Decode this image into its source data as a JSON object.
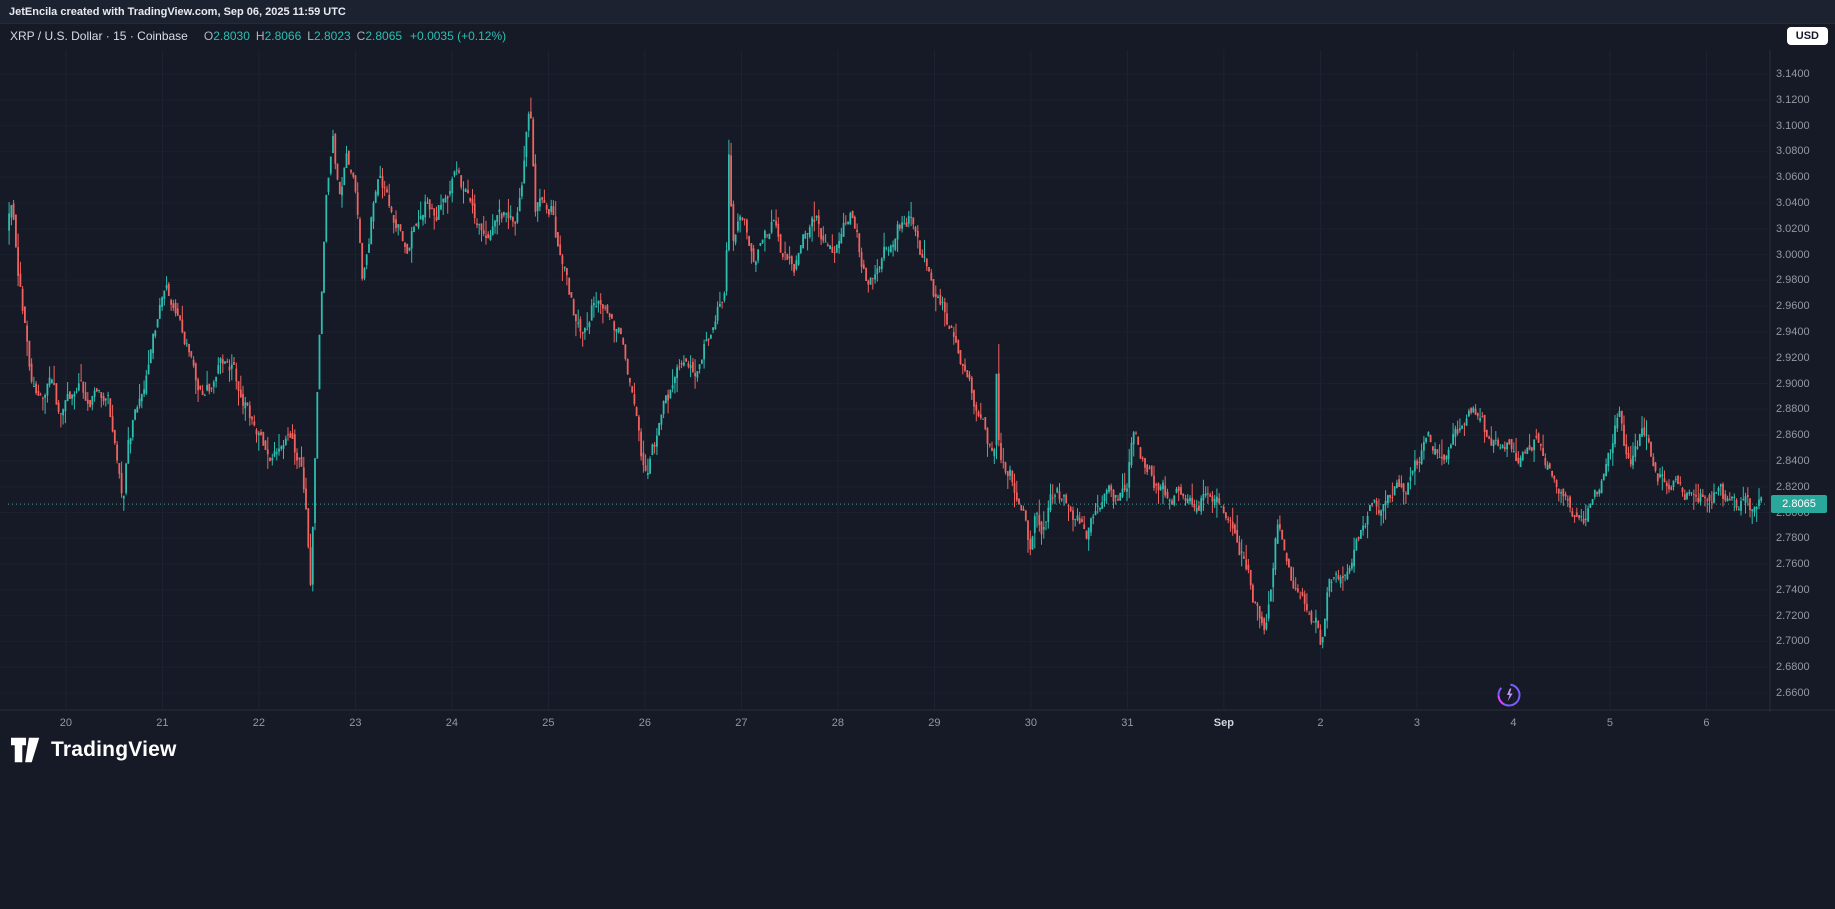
{
  "attribution": "JetEncila created with TradingView.com, Sep 06, 2025 11:59 UTC",
  "symbol": {
    "title": "XRP / U.S. Dollar · 15 · Coinbase",
    "ohlc": [
      {
        "label": "O",
        "value": "2.8030"
      },
      {
        "label": "H",
        "value": "2.8066"
      },
      {
        "label": "L",
        "value": "2.8023"
      },
      {
        "label": "C",
        "value": "2.8065"
      }
    ],
    "change": "+0.0035 (+0.12%)"
  },
  "currency_button": "USD",
  "price_badge": "2.8065",
  "logo_text": "TradingView",
  "icons": {
    "logo_mark": "tradingview-mark-icon",
    "watermark": "sparkle-circle-icon"
  },
  "colors": {
    "background": "#151a26",
    "up": "#2fbdb0",
    "down": "#f0625f",
    "badge_bg": "#2aa79b",
    "grid_v": "#1e2331",
    "grid_h": "#1a202c",
    "axis_border": "#2a2e39",
    "price_line": "#4db6ac"
  },
  "chart_data": {
    "type": "candlestick",
    "symbol": "XRP/USD",
    "interval": "15",
    "exchange": "Coinbase",
    "ohlc_current": {
      "o": 2.803,
      "h": 2.8066,
      "l": 2.8023,
      "c": 2.8065
    },
    "last_price": 2.8065,
    "t_start": 19.4,
    "t_end": 37.58,
    "y_axis_min": 2.66,
    "y_axis_max": 3.14,
    "y_ticks": [
      "3.1400",
      "3.1200",
      "3.1000",
      "3.0800",
      "3.0600",
      "3.0400",
      "3.0200",
      "3.0000",
      "2.9800",
      "2.9600",
      "2.9400",
      "2.9200",
      "2.9000",
      "2.8800",
      "2.8600",
      "2.8400",
      "2.8200",
      "2.8000",
      "2.7800",
      "2.7600",
      "2.7400",
      "2.7200",
      "2.7000",
      "2.6800",
      "2.6600"
    ],
    "x_labels": [
      {
        "label": "20",
        "t": 20
      },
      {
        "label": "21",
        "t": 21
      },
      {
        "label": "22",
        "t": 22
      },
      {
        "label": "23",
        "t": 23
      },
      {
        "label": "24",
        "t": 24
      },
      {
        "label": "25",
        "t": 25
      },
      {
        "label": "26",
        "t": 26
      },
      {
        "label": "27",
        "t": 27
      },
      {
        "label": "28",
        "t": 28
      },
      {
        "label": "29",
        "t": 29
      },
      {
        "label": "30",
        "t": 30
      },
      {
        "label": "31",
        "t": 31
      },
      {
        "label": "Sep",
        "t": 32,
        "major": true
      },
      {
        "label": "2",
        "t": 33
      },
      {
        "label": "3",
        "t": 34
      },
      {
        "label": "4",
        "t": 35
      },
      {
        "label": "5",
        "t": 36
      },
      {
        "label": "6",
        "t": 37
      }
    ],
    "price_path": [
      [
        19.4,
        3.02
      ],
      [
        19.45,
        3.04
      ],
      [
        19.55,
        2.965
      ],
      [
        19.65,
        2.905
      ],
      [
        19.75,
        2.885
      ],
      [
        19.85,
        2.905
      ],
      [
        19.95,
        2.875
      ],
      [
        20.05,
        2.89
      ],
      [
        20.15,
        2.9
      ],
      [
        20.25,
        2.885
      ],
      [
        20.35,
        2.895
      ],
      [
        20.45,
        2.885
      ],
      [
        20.55,
        2.84
      ],
      [
        20.6,
        2.8
      ],
      [
        20.65,
        2.855
      ],
      [
        20.75,
        2.88
      ],
      [
        20.85,
        2.905
      ],
      [
        20.95,
        2.95
      ],
      [
        21.05,
        2.975
      ],
      [
        21.15,
        2.955
      ],
      [
        21.25,
        2.935
      ],
      [
        21.35,
        2.905
      ],
      [
        21.45,
        2.89
      ],
      [
        21.55,
        2.905
      ],
      [
        21.65,
        2.92
      ],
      [
        21.75,
        2.91
      ],
      [
        21.85,
        2.885
      ],
      [
        21.95,
        2.87
      ],
      [
        22.05,
        2.855
      ],
      [
        22.15,
        2.84
      ],
      [
        22.25,
        2.855
      ],
      [
        22.35,
        2.86
      ],
      [
        22.45,
        2.835
      ],
      [
        22.5,
        2.8
      ],
      [
        22.55,
        2.745
      ],
      [
        22.62,
        2.9
      ],
      [
        22.7,
        3.04
      ],
      [
        22.78,
        3.09
      ],
      [
        22.85,
        3.045
      ],
      [
        22.92,
        3.075
      ],
      [
        23.0,
        3.06
      ],
      [
        23.08,
        2.985
      ],
      [
        23.15,
        3.01
      ],
      [
        23.25,
        3.065
      ],
      [
        23.35,
        3.04
      ],
      [
        23.45,
        3.02
      ],
      [
        23.55,
        3.005
      ],
      [
        23.65,
        3.025
      ],
      [
        23.75,
        3.04
      ],
      [
        23.85,
        3.03
      ],
      [
        23.95,
        3.045
      ],
      [
        24.05,
        3.065
      ],
      [
        24.15,
        3.05
      ],
      [
        24.25,
        3.03
      ],
      [
        24.35,
        3.01
      ],
      [
        24.45,
        3.025
      ],
      [
        24.55,
        3.035
      ],
      [
        24.65,
        3.02
      ],
      [
        24.75,
        3.06
      ],
      [
        24.82,
        3.125
      ],
      [
        24.88,
        3.03
      ],
      [
        24.95,
        3.045
      ],
      [
        25.05,
        3.03
      ],
      [
        25.15,
        2.995
      ],
      [
        25.25,
        2.965
      ],
      [
        25.35,
        2.935
      ],
      [
        25.45,
        2.955
      ],
      [
        25.55,
        2.965
      ],
      [
        25.65,
        2.95
      ],
      [
        25.75,
        2.94
      ],
      [
        25.85,
        2.905
      ],
      [
        25.95,
        2.86
      ],
      [
        26.03,
        2.825
      ],
      [
        26.12,
        2.86
      ],
      [
        26.22,
        2.885
      ],
      [
        26.32,
        2.905
      ],
      [
        26.42,
        2.92
      ],
      [
        26.52,
        2.905
      ],
      [
        26.62,
        2.925
      ],
      [
        26.72,
        2.945
      ],
      [
        26.82,
        2.965
      ],
      [
        26.85,
        2.975
      ],
      [
        26.88,
        3.082
      ],
      [
        26.92,
        3.005
      ],
      [
        27.0,
        3.035
      ],
      [
        27.08,
        3.01
      ],
      [
        27.15,
        2.995
      ],
      [
        27.25,
        3.015
      ],
      [
        27.35,
        3.025
      ],
      [
        27.45,
        3.0
      ],
      [
        27.55,
        2.99
      ],
      [
        27.65,
        3.01
      ],
      [
        27.75,
        3.03
      ],
      [
        27.85,
        3.015
      ],
      [
        27.95,
        3.0
      ],
      [
        28.05,
        3.015
      ],
      [
        28.15,
        3.035
      ],
      [
        28.25,
        2.995
      ],
      [
        28.35,
        2.975
      ],
      [
        28.45,
        2.995
      ],
      [
        28.55,
        3.005
      ],
      [
        28.65,
        3.02
      ],
      [
        28.75,
        3.03
      ],
      [
        28.85,
        3.01
      ],
      [
        28.95,
        2.985
      ],
      [
        29.05,
        2.965
      ],
      [
        29.15,
        2.95
      ],
      [
        29.25,
        2.925
      ],
      [
        29.35,
        2.905
      ],
      [
        29.45,
        2.88
      ],
      [
        29.55,
        2.86
      ],
      [
        29.62,
        2.845
      ],
      [
        29.64,
        2.855
      ],
      [
        29.66,
        2.918
      ],
      [
        29.68,
        2.85
      ],
      [
        29.7,
        2.845
      ],
      [
        29.8,
        2.825
      ],
      [
        29.9,
        2.805
      ],
      [
        29.97,
        2.79
      ],
      [
        30.0,
        2.768
      ],
      [
        30.05,
        2.8
      ],
      [
        30.12,
        2.785
      ],
      [
        30.2,
        2.805
      ],
      [
        30.28,
        2.818
      ],
      [
        30.36,
        2.808
      ],
      [
        30.44,
        2.8
      ],
      [
        30.52,
        2.792
      ],
      [
        30.6,
        2.785
      ],
      [
        30.68,
        2.8
      ],
      [
        30.76,
        2.812
      ],
      [
        30.84,
        2.818
      ],
      [
        30.92,
        2.81
      ],
      [
        31.0,
        2.82
      ],
      [
        31.07,
        2.862
      ],
      [
        31.15,
        2.845
      ],
      [
        31.23,
        2.83
      ],
      [
        31.31,
        2.822
      ],
      [
        31.39,
        2.815
      ],
      [
        31.47,
        2.81
      ],
      [
        31.55,
        2.818
      ],
      [
        31.63,
        2.81
      ],
      [
        31.71,
        2.802
      ],
      [
        31.79,
        2.81
      ],
      [
        31.87,
        2.815
      ],
      [
        31.95,
        2.805
      ],
      [
        32.03,
        2.8
      ],
      [
        32.1,
        2.788
      ],
      [
        32.18,
        2.772
      ],
      [
        32.26,
        2.752
      ],
      [
        32.34,
        2.73
      ],
      [
        32.42,
        2.708
      ],
      [
        32.5,
        2.74
      ],
      [
        32.58,
        2.798
      ],
      [
        32.63,
        2.772
      ],
      [
        32.7,
        2.75
      ],
      [
        32.78,
        2.738
      ],
      [
        32.86,
        2.728
      ],
      [
        32.94,
        2.715
      ],
      [
        33.0,
        2.708
      ],
      [
        33.02,
        2.695
      ],
      [
        33.08,
        2.735
      ],
      [
        33.16,
        2.755
      ],
      [
        33.24,
        2.745
      ],
      [
        33.32,
        2.76
      ],
      [
        33.4,
        2.778
      ],
      [
        33.48,
        2.795
      ],
      [
        33.56,
        2.808
      ],
      [
        33.64,
        2.8
      ],
      [
        33.72,
        2.812
      ],
      [
        33.8,
        2.822
      ],
      [
        33.88,
        2.815
      ],
      [
        33.96,
        2.83
      ],
      [
        34.04,
        2.845
      ],
      [
        34.12,
        2.858
      ],
      [
        34.2,
        2.848
      ],
      [
        34.28,
        2.838
      ],
      [
        34.36,
        2.855
      ],
      [
        34.44,
        2.865
      ],
      [
        34.52,
        2.872
      ],
      [
        34.6,
        2.882
      ],
      [
        34.68,
        2.87
      ],
      [
        34.76,
        2.858
      ],
      [
        34.84,
        2.85
      ],
      [
        34.92,
        2.855
      ],
      [
        35.0,
        2.848
      ],
      [
        35.08,
        2.84
      ],
      [
        35.16,
        2.85
      ],
      [
        35.24,
        2.858
      ],
      [
        35.32,
        2.845
      ],
      [
        35.4,
        2.828
      ],
      [
        35.48,
        2.818
      ],
      [
        35.56,
        2.81
      ],
      [
        35.64,
        2.798
      ],
      [
        35.72,
        2.792
      ],
      [
        35.8,
        2.805
      ],
      [
        35.88,
        2.815
      ],
      [
        35.96,
        2.832
      ],
      [
        36.04,
        2.855
      ],
      [
        36.1,
        2.882
      ],
      [
        36.16,
        2.852
      ],
      [
        36.22,
        2.838
      ],
      [
        36.28,
        2.846
      ],
      [
        36.34,
        2.868
      ],
      [
        36.4,
        2.855
      ],
      [
        36.46,
        2.838
      ],
      [
        36.52,
        2.828
      ],
      [
        36.6,
        2.82
      ],
      [
        36.68,
        2.824
      ],
      [
        36.76,
        2.818
      ],
      [
        36.84,
        2.812
      ],
      [
        36.92,
        2.815
      ],
      [
        37.0,
        2.808
      ],
      [
        37.08,
        2.812
      ],
      [
        37.16,
        2.818
      ],
      [
        37.24,
        2.81
      ],
      [
        37.32,
        2.806
      ],
      [
        37.4,
        2.81
      ],
      [
        37.48,
        2.804
      ],
      [
        37.58,
        2.8065
      ]
    ]
  }
}
